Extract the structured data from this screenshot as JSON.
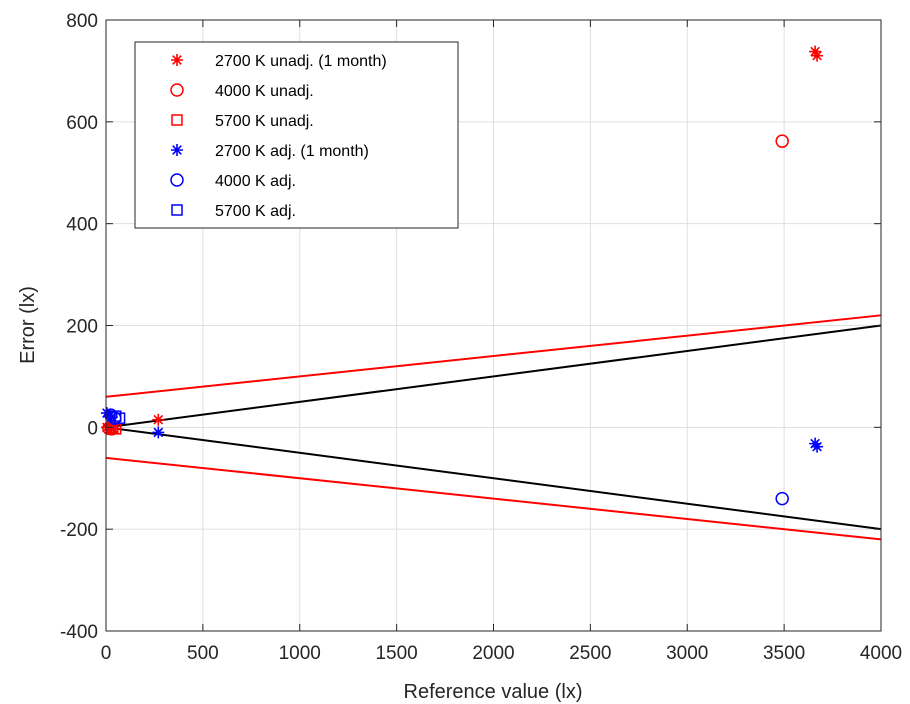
{
  "chart_data": {
    "type": "scatter",
    "xlabel": "Reference value (lx)",
    "ylabel": "Error (lx)",
    "xlim": [
      0,
      4000
    ],
    "ylim": [
      -400,
      800
    ],
    "xticks": [
      0,
      500,
      1000,
      1500,
      2000,
      2500,
      3000,
      3500,
      4000
    ],
    "yticks": [
      -400,
      -200,
      0,
      200,
      400,
      600,
      800
    ],
    "grid": true,
    "legend_position": "top-left",
    "series": [
      {
        "name": "2700 K unadj. (1 month)",
        "marker": "asterisk",
        "color": "#ff0000",
        "points": [
          [
            5,
            0
          ],
          [
            20,
            1
          ],
          [
            30,
            -2
          ],
          [
            40,
            -3
          ],
          [
            270,
            15
          ],
          [
            3660,
            738
          ],
          [
            3670,
            730
          ]
        ]
      },
      {
        "name": "4000 K unadj.",
        "marker": "circle",
        "color": "#ff0000",
        "points": [
          [
            15,
            -2
          ],
          [
            30,
            -3
          ],
          [
            3490,
            562
          ]
        ]
      },
      {
        "name": "5700 K unadj.",
        "marker": "square",
        "color": "#ff0000",
        "points": [
          [
            35,
            -1
          ],
          [
            50,
            -3
          ]
        ]
      },
      {
        "name": "2700 K adj. (1 month)",
        "marker": "asterisk",
        "color": "#0000ff",
        "points": [
          [
            5,
            28
          ],
          [
            20,
            24
          ],
          [
            30,
            20
          ],
          [
            270,
            -10
          ],
          [
            3660,
            -32
          ],
          [
            3670,
            -38
          ]
        ]
      },
      {
        "name": "4000 K adj.",
        "marker": "circle",
        "color": "#0000ff",
        "points": [
          [
            25,
            24
          ],
          [
            45,
            18
          ],
          [
            3490,
            -140
          ]
        ]
      },
      {
        "name": "5700 K adj.",
        "marker": "square",
        "color": "#0000ff",
        "points": [
          [
            50,
            22
          ],
          [
            70,
            18
          ]
        ]
      }
    ],
    "lines": [
      {
        "color": "#ff0000",
        "points": [
          [
            0,
            60
          ],
          [
            4000,
            220
          ]
        ]
      },
      {
        "color": "#ff0000",
        "points": [
          [
            0,
            -60
          ],
          [
            4000,
            -220
          ]
        ]
      },
      {
        "color": "#000000",
        "points": [
          [
            0,
            0
          ],
          [
            4000,
            200
          ]
        ]
      },
      {
        "color": "#000000",
        "points": [
          [
            0,
            0
          ],
          [
            4000,
            -200
          ]
        ]
      }
    ]
  }
}
